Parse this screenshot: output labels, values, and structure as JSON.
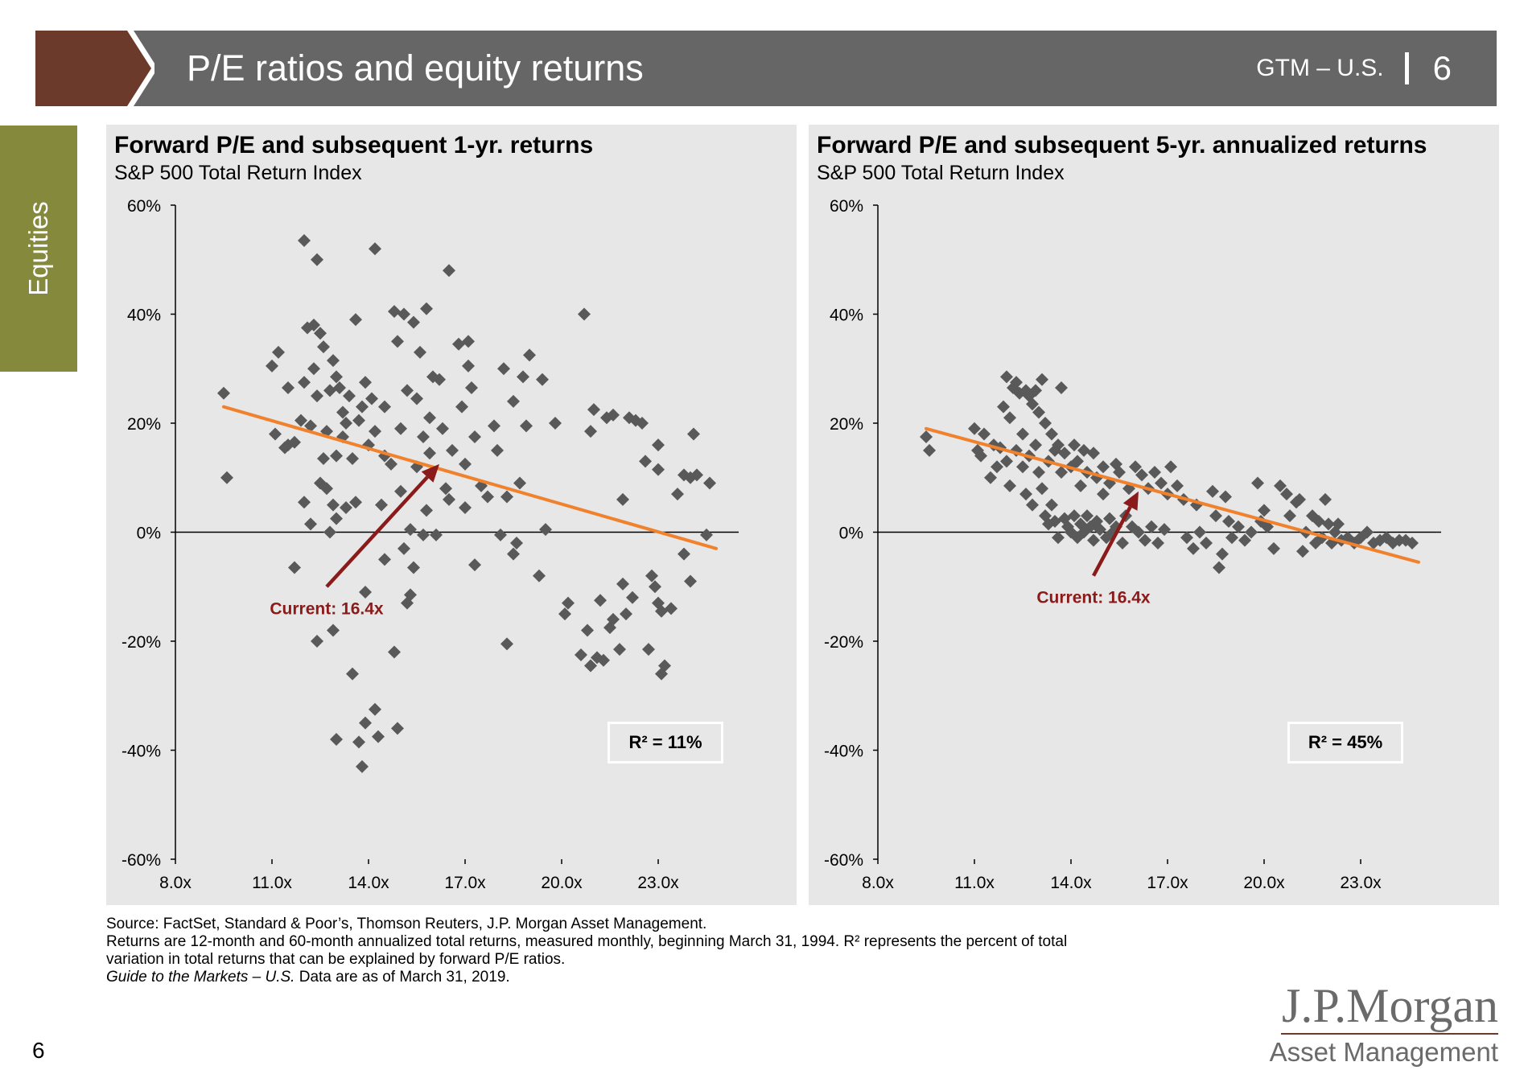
{
  "header": {
    "title": "P/E ratios and equity returns",
    "section": "GTM – U.S.",
    "page": "6"
  },
  "side_tab": {
    "label": "Equities"
  },
  "colors": {
    "brown": "#6b3a2a",
    "gray_bar": "#666666",
    "olive": "#84893b",
    "marker": "#595959",
    "trend": "#f0822d",
    "arrow": "#8b1a1a",
    "panel_bg": "#e7e7e7"
  },
  "chart_data": [
    {
      "type": "scatter",
      "title": "Forward P/E and subsequent 1-yr. returns",
      "subtitle": "S&P 500 Total Return Index",
      "xlabel": "",
      "ylabel": "",
      "xlim": [
        8,
        25.5
      ],
      "ylim": [
        -60,
        60
      ],
      "xticks": [
        8,
        11,
        14,
        17,
        20,
        23
      ],
      "xtick_labels": [
        "8.0x",
        "11.0x",
        "14.0x",
        "17.0x",
        "20.0x",
        "23.0x"
      ],
      "yticks": [
        60,
        40,
        20,
        0,
        -20,
        -40,
        -60
      ],
      "ytick_labels": [
        "60%",
        "40%",
        "20%",
        "0%",
        "-20%",
        "-40%",
        "-60%"
      ],
      "grid": false,
      "trendline": {
        "x": [
          9.5,
          24.8
        ],
        "y": [
          23,
          -3
        ]
      },
      "annotation": {
        "text": "Current: 16.4x",
        "arrow_from": [
          12.7,
          -10
        ],
        "arrow_to": [
          16.2,
          12.5
        ]
      },
      "r_squared": "R² = 11%",
      "points": [
        [
          9.5,
          25.5
        ],
        [
          9.6,
          10
        ],
        [
          11.0,
          30.5
        ],
        [
          11.1,
          18
        ],
        [
          11.2,
          33
        ],
        [
          11.4,
          15.5
        ],
        [
          11.5,
          26.5
        ],
        [
          11.5,
          16
        ],
        [
          11.7,
          16.5
        ],
        [
          11.7,
          -6.5
        ],
        [
          11.9,
          20.5
        ],
        [
          12.0,
          27.5
        ],
        [
          12.0,
          5.5
        ],
        [
          12.0,
          53.5
        ],
        [
          12.1,
          37.5
        ],
        [
          12.2,
          19.5
        ],
        [
          12.2,
          1.5
        ],
        [
          12.3,
          38
        ],
        [
          12.3,
          30
        ],
        [
          12.4,
          50
        ],
        [
          12.4,
          -20
        ],
        [
          12.4,
          25
        ],
        [
          12.5,
          9
        ],
        [
          12.5,
          36.5
        ],
        [
          12.6,
          13.5
        ],
        [
          12.6,
          34
        ],
        [
          12.7,
          8
        ],
        [
          12.7,
          18.5
        ],
        [
          12.8,
          26
        ],
        [
          12.8,
          0
        ],
        [
          12.9,
          31.5
        ],
        [
          12.9,
          5
        ],
        [
          12.9,
          -18
        ],
        [
          13.0,
          28.5
        ],
        [
          13.0,
          14
        ],
        [
          13.0,
          2.5
        ],
        [
          13.0,
          -38
        ],
        [
          13.1,
          26.5
        ],
        [
          13.2,
          22
        ],
        [
          13.2,
          17.5
        ],
        [
          13.3,
          4.5
        ],
        [
          13.3,
          20
        ],
        [
          13.4,
          25
        ],
        [
          13.5,
          13.5
        ],
        [
          13.5,
          -26
        ],
        [
          13.6,
          39
        ],
        [
          13.6,
          5.5
        ],
        [
          13.7,
          -38.5
        ],
        [
          13.7,
          20.5
        ],
        [
          13.8,
          -43
        ],
        [
          13.8,
          23
        ],
        [
          13.9,
          -11
        ],
        [
          13.9,
          -35
        ],
        [
          13.9,
          27.5
        ],
        [
          14.0,
          16
        ],
        [
          14.1,
          24.5
        ],
        [
          14.2,
          18.5
        ],
        [
          14.2,
          -32.5
        ],
        [
          14.2,
          52
        ],
        [
          14.3,
          -37.5
        ],
        [
          14.4,
          5
        ],
        [
          14.5,
          14
        ],
        [
          14.5,
          -5
        ],
        [
          14.5,
          23
        ],
        [
          14.7,
          12.5
        ],
        [
          14.8,
          40.5
        ],
        [
          14.8,
          -22
        ],
        [
          14.9,
          -36
        ],
        [
          14.9,
          35
        ],
        [
          15.0,
          7.5
        ],
        [
          15.0,
          19
        ],
        [
          15.1,
          40
        ],
        [
          15.1,
          -3
        ],
        [
          15.2,
          -13
        ],
        [
          15.2,
          26
        ],
        [
          15.3,
          -11.5
        ],
        [
          15.3,
          0.5
        ],
        [
          15.4,
          38.5
        ],
        [
          15.4,
          -6.5
        ],
        [
          15.5,
          24.5
        ],
        [
          15.5,
          12
        ],
        [
          15.6,
          33
        ],
        [
          15.7,
          -0.5
        ],
        [
          15.7,
          17.5
        ],
        [
          15.8,
          41
        ],
        [
          15.8,
          4
        ],
        [
          15.9,
          21
        ],
        [
          15.9,
          14.5
        ],
        [
          16.0,
          28.5
        ],
        [
          16.1,
          -0.5
        ],
        [
          16.2,
          28
        ],
        [
          16.3,
          19
        ],
        [
          16.4,
          8
        ],
        [
          16.5,
          48
        ],
        [
          16.5,
          6
        ],
        [
          16.6,
          15
        ],
        [
          16.8,
          34.5
        ],
        [
          16.9,
          23
        ],
        [
          17.0,
          4.5
        ],
        [
          17.0,
          12.5
        ],
        [
          17.1,
          35
        ],
        [
          17.1,
          30.5
        ],
        [
          17.2,
          26.5
        ],
        [
          17.3,
          -6
        ],
        [
          17.3,
          17.5
        ],
        [
          17.5,
          8.5
        ],
        [
          17.7,
          6.5
        ],
        [
          17.9,
          19.5
        ],
        [
          18.0,
          15
        ],
        [
          18.1,
          -0.5
        ],
        [
          18.2,
          30
        ],
        [
          18.3,
          6.5
        ],
        [
          18.3,
          -20.5
        ],
        [
          18.5,
          -4
        ],
        [
          18.5,
          24
        ],
        [
          18.6,
          -2
        ],
        [
          18.7,
          9
        ],
        [
          18.8,
          28.5
        ],
        [
          18.9,
          19.5
        ],
        [
          19.0,
          32.5
        ],
        [
          19.3,
          -8
        ],
        [
          19.4,
          28
        ],
        [
          19.5,
          0.5
        ],
        [
          19.8,
          20
        ],
        [
          20.1,
          -15
        ],
        [
          20.2,
          -13
        ],
        [
          20.6,
          -22.5
        ],
        [
          20.7,
          40
        ],
        [
          20.8,
          -18
        ],
        [
          20.9,
          18.5
        ],
        [
          20.9,
          -24.5
        ],
        [
          21.0,
          22.5
        ],
        [
          21.1,
          -23
        ],
        [
          21.2,
          -12.5
        ],
        [
          21.3,
          -23.5
        ],
        [
          21.4,
          21
        ],
        [
          21.5,
          -17.5
        ],
        [
          21.6,
          21.5
        ],
        [
          21.6,
          -16
        ],
        [
          21.8,
          -21.5
        ],
        [
          21.9,
          -9.5
        ],
        [
          21.9,
          6
        ],
        [
          22.0,
          -15
        ],
        [
          22.1,
          21
        ],
        [
          22.2,
          -12
        ],
        [
          22.3,
          20.5
        ],
        [
          22.5,
          20
        ],
        [
          22.6,
          13
        ],
        [
          22.7,
          -21.5
        ],
        [
          22.8,
          -8
        ],
        [
          22.9,
          -10
        ],
        [
          23.0,
          11.5
        ],
        [
          23.0,
          16
        ],
        [
          23.0,
          -13
        ],
        [
          23.1,
          -26
        ],
        [
          23.1,
          -14.5
        ],
        [
          23.2,
          -24.5
        ],
        [
          23.4,
          -14
        ],
        [
          23.6,
          7
        ],
        [
          23.8,
          10.5
        ],
        [
          23.8,
          -4
        ],
        [
          24.0,
          -9
        ],
        [
          24.0,
          10
        ],
        [
          24.1,
          18
        ],
        [
          24.2,
          10.5
        ],
        [
          24.5,
          -0.5
        ],
        [
          24.6,
          9
        ]
      ]
    },
    {
      "type": "scatter",
      "title": "Forward P/E and subsequent 5-yr. annualized returns",
      "subtitle": "S&P 500 Total Return Index",
      "xlabel": "",
      "ylabel": "",
      "xlim": [
        8,
        25.5
      ],
      "ylim": [
        -60,
        60
      ],
      "xticks": [
        8,
        11,
        14,
        17,
        20,
        23
      ],
      "xtick_labels": [
        "8.0x",
        "11.0x",
        "14.0x",
        "17.0x",
        "20.0x",
        "23.0x"
      ],
      "yticks": [
        60,
        40,
        20,
        0,
        -20,
        -40,
        -60
      ],
      "ytick_labels": [
        "60%",
        "40%",
        "20%",
        "0%",
        "-20%",
        "-40%",
        "-60%"
      ],
      "grid": false,
      "trendline": {
        "x": [
          9.5,
          24.8
        ],
        "y": [
          19,
          -5.5
        ]
      },
      "annotation": {
        "text": "Current: 16.4x",
        "arrow_from": [
          14.7,
          -8
        ],
        "arrow_to": [
          16.1,
          7.5
        ]
      },
      "r_squared": "R² = 45%",
      "points": [
        [
          9.5,
          17.5
        ],
        [
          9.6,
          15
        ],
        [
          11.0,
          19
        ],
        [
          11.1,
          15
        ],
        [
          11.2,
          14
        ],
        [
          11.3,
          18
        ],
        [
          11.5,
          10
        ],
        [
          11.6,
          16
        ],
        [
          11.7,
          12
        ],
        [
          11.8,
          15.5
        ],
        [
          11.9,
          23
        ],
        [
          12.0,
          28.5
        ],
        [
          12.0,
          13
        ],
        [
          12.1,
          21
        ],
        [
          12.1,
          8.5
        ],
        [
          12.2,
          26.5
        ],
        [
          12.3,
          27.5
        ],
        [
          12.3,
          15
        ],
        [
          12.4,
          25.5
        ],
        [
          12.5,
          12
        ],
        [
          12.5,
          18
        ],
        [
          12.6,
          26
        ],
        [
          12.6,
          7
        ],
        [
          12.7,
          25
        ],
        [
          12.7,
          14
        ],
        [
          12.8,
          5
        ],
        [
          12.8,
          23.5
        ],
        [
          12.9,
          26
        ],
        [
          12.9,
          16
        ],
        [
          13.0,
          11
        ],
        [
          13.0,
          22
        ],
        [
          13.1,
          28
        ],
        [
          13.1,
          8
        ],
        [
          13.2,
          20
        ],
        [
          13.2,
          3
        ],
        [
          13.3,
          13
        ],
        [
          13.3,
          1.5
        ],
        [
          13.4,
          18
        ],
        [
          13.4,
          5
        ],
        [
          13.5,
          2
        ],
        [
          13.5,
          15
        ],
        [
          13.6,
          -1
        ],
        [
          13.6,
          16
        ],
        [
          13.7,
          11
        ],
        [
          13.7,
          26.5
        ],
        [
          13.8,
          2.5
        ],
        [
          13.8,
          14.5
        ],
        [
          13.9,
          1
        ],
        [
          14.0,
          12
        ],
        [
          14.0,
          0
        ],
        [
          14.1,
          16
        ],
        [
          14.1,
          3
        ],
        [
          14.2,
          -1
        ],
        [
          14.2,
          13
        ],
        [
          14.3,
          1.5
        ],
        [
          14.3,
          8.5
        ],
        [
          14.4,
          0
        ],
        [
          14.4,
          15
        ],
        [
          14.5,
          3
        ],
        [
          14.5,
          11
        ],
        [
          14.6,
          1
        ],
        [
          14.7,
          14.5
        ],
        [
          14.7,
          -1.5
        ],
        [
          14.8,
          2
        ],
        [
          14.8,
          10
        ],
        [
          14.9,
          0.5
        ],
        [
          15.0,
          7
        ],
        [
          15.0,
          12
        ],
        [
          15.1,
          -1
        ],
        [
          15.2,
          2.5
        ],
        [
          15.2,
          9
        ],
        [
          15.3,
          0
        ],
        [
          15.4,
          12.5
        ],
        [
          15.4,
          1
        ],
        [
          15.5,
          11
        ],
        [
          15.6,
          -2
        ],
        [
          15.7,
          3
        ],
        [
          15.8,
          8
        ],
        [
          15.9,
          1
        ],
        [
          16.0,
          12
        ],
        [
          16.1,
          0
        ],
        [
          16.2,
          10.5
        ],
        [
          16.3,
          -1.5
        ],
        [
          16.4,
          8
        ],
        [
          16.5,
          1
        ],
        [
          16.6,
          11
        ],
        [
          16.7,
          -2
        ],
        [
          16.8,
          9
        ],
        [
          16.9,
          0.5
        ],
        [
          17.0,
          7
        ],
        [
          17.1,
          12
        ],
        [
          17.3,
          8.5
        ],
        [
          17.5,
          6
        ],
        [
          17.6,
          -1
        ],
        [
          17.8,
          -3
        ],
        [
          17.9,
          5
        ],
        [
          18.0,
          0
        ],
        [
          18.2,
          -2
        ],
        [
          18.4,
          7.5
        ],
        [
          18.5,
          3
        ],
        [
          18.6,
          -6.5
        ],
        [
          18.7,
          -4
        ],
        [
          18.8,
          6.5
        ],
        [
          18.9,
          2
        ],
        [
          19.0,
          -1
        ],
        [
          19.2,
          1
        ],
        [
          19.4,
          -1.5
        ],
        [
          19.6,
          0
        ],
        [
          19.8,
          9
        ],
        [
          19.9,
          2
        ],
        [
          20.0,
          4
        ],
        [
          20.1,
          1
        ],
        [
          20.3,
          -3
        ],
        [
          20.5,
          8.5
        ],
        [
          20.7,
          7
        ],
        [
          20.8,
          3
        ],
        [
          21.0,
          5.5
        ],
        [
          21.1,
          6
        ],
        [
          21.2,
          -3.5
        ],
        [
          21.3,
          0
        ],
        [
          21.5,
          3
        ],
        [
          21.6,
          -2
        ],
        [
          21.7,
          2
        ],
        [
          21.8,
          -1
        ],
        [
          21.9,
          6
        ],
        [
          22.0,
          1.5
        ],
        [
          22.1,
          -2
        ],
        [
          22.2,
          0
        ],
        [
          22.3,
          1.5
        ],
        [
          22.4,
          -1.5
        ],
        [
          22.6,
          -1
        ],
        [
          22.8,
          -2
        ],
        [
          23.0,
          -1
        ],
        [
          23.2,
          0
        ],
        [
          23.4,
          -2
        ],
        [
          23.6,
          -1.5
        ],
        [
          23.8,
          -1
        ],
        [
          24.0,
          -2
        ],
        [
          24.2,
          -1.5
        ],
        [
          24.4,
          -1.5
        ],
        [
          24.6,
          -2
        ]
      ]
    }
  ],
  "footnotes": {
    "line1": "Source: FactSet, Standard & Poor’s, Thomson Reuters, J.P. Morgan Asset Management.",
    "line2": "Returns are 12-month and 60-month annualized total returns, measured monthly, beginning March 31, 1994. R² represents the percent of total",
    "line3": "variation in total returns that can be explained by forward P/E ratios.",
    "line4_italic": "Guide to the Markets – U.S.",
    "line4_rest": " Data are as of March 31, 2019."
  },
  "logo": {
    "main": "J.P.Morgan",
    "sub": "Asset Management"
  },
  "page_number": "6"
}
